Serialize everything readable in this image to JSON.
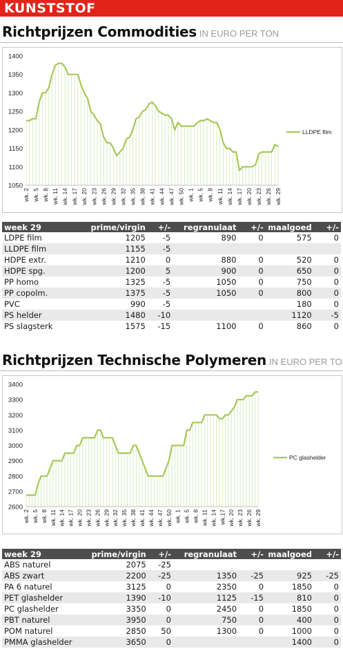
{
  "banner": {
    "label": "KUNSTSTOF"
  },
  "section1": {
    "title": "Richtprijzen Commodities",
    "subtitle": "IN EURO PER TON",
    "table": {
      "headers": [
        "week 29",
        "prime/virgin",
        "+/-",
        "regranulaat",
        "+/-",
        "maalgoed",
        "+/-"
      ],
      "rows": [
        [
          "LDPE film",
          "1205",
          "-5",
          "890",
          "0",
          "575",
          "0"
        ],
        [
          "LLDPE film",
          "1155",
          "-5",
          "",
          "",
          "",
          ""
        ],
        [
          "HDPE extr.",
          "1210",
          "0",
          "880",
          "0",
          "520",
          "0"
        ],
        [
          "HDPE spg.",
          "1200",
          "5",
          "900",
          "0",
          "650",
          "0"
        ],
        [
          "PP homo",
          "1325",
          "-5",
          "1050",
          "0",
          "750",
          "0"
        ],
        [
          "PP copolm.",
          "1375",
          "-5",
          "1050",
          "0",
          "800",
          "0"
        ],
        [
          "PVC",
          "990",
          "-5",
          "",
          "",
          "180",
          "0"
        ],
        [
          "PS helder",
          "1480",
          "-10",
          "",
          "",
          "1120",
          "-5"
        ],
        [
          "PS slagsterk",
          "1575",
          "-15",
          "1100",
          "0",
          "860",
          "0"
        ]
      ]
    }
  },
  "section2": {
    "title": "Richtprijzen Technische Polymeren",
    "subtitle": "IN EURO PER TON",
    "table": {
      "headers": [
        "week 29",
        "prime/virgin",
        "+/-",
        "regranulaat",
        "+/-",
        "maalgoed",
        "+/-"
      ],
      "rows": [
        [
          "ABS naturel",
          "2075",
          "-25",
          "",
          "",
          "",
          ""
        ],
        [
          "ABS zwart",
          "2200",
          "-25",
          "1350",
          "-25",
          "925",
          "-25"
        ],
        [
          "PA 6 naturel",
          "3125",
          "0",
          "2350",
          "0",
          "1850",
          "0"
        ],
        [
          "PET glashelder",
          "1390",
          "-10",
          "1125",
          "-15",
          "810",
          "0"
        ],
        [
          "PC glashelder",
          "3350",
          "0",
          "2450",
          "0",
          "1850",
          "0"
        ],
        [
          "PBT naturel",
          "3950",
          "0",
          "750",
          "0",
          "400",
          "0"
        ],
        [
          "POM naturel",
          "2850",
          "50",
          "1300",
          "0",
          "1000",
          "0"
        ],
        [
          "PMMA glashelder",
          "3650",
          "0",
          "",
          "",
          "1400",
          "0"
        ]
      ]
    }
  },
  "chart_data": [
    {
      "type": "line",
      "title": "",
      "xlabel": "",
      "ylabel": "",
      "ylim": [
        1050,
        1400
      ],
      "yticks": [
        1050,
        1100,
        1150,
        1200,
        1250,
        1300,
        1350,
        1400
      ],
      "xtick_labels": [
        "wk. 2",
        "wk. 5",
        "wk. 8",
        "wk. 11",
        "wk. 14",
        "wk. 17",
        "wk. 20",
        "wk. 23",
        "wk. 26",
        "wk. 29",
        "wk. 32",
        "wk. 35",
        "wk. 38",
        "wk. 41",
        "wk. 44",
        "wk. 47",
        "wk. 50",
        "wk. 1",
        "wk. 5",
        "wk. 8",
        "wk. 11",
        "wk. 14",
        "wk. 17",
        "wk. 20",
        "wk. 23",
        "wk. 26",
        "wk. 29"
      ],
      "legend_position": "right",
      "line_color": "#a6c85a",
      "series": [
        {
          "name": "LLDPE film",
          "values": [
            1225,
            1225,
            1230,
            1230,
            1275,
            1300,
            1300,
            1315,
            1350,
            1375,
            1380,
            1380,
            1370,
            1350,
            1350,
            1350,
            1350,
            1320,
            1300,
            1285,
            1250,
            1240,
            1225,
            1215,
            1180,
            1165,
            1165,
            1150,
            1130,
            1140,
            1150,
            1175,
            1180,
            1200,
            1230,
            1235,
            1250,
            1255,
            1270,
            1275,
            1265,
            1250,
            1245,
            1240,
            1240,
            1230,
            1200,
            1220,
            1210,
            1210,
            1210,
            1210,
            1210,
            1220,
            1225,
            1225,
            1230,
            1225,
            1220,
            1220,
            1200,
            1165,
            1150,
            1150,
            1140,
            1140,
            1090,
            1100,
            1100,
            1100,
            1100,
            1105,
            1135,
            1140,
            1140,
            1140,
            1140,
            1160,
            1155
          ]
        }
      ]
    },
    {
      "type": "line",
      "title": "",
      "xlabel": "",
      "ylabel": "",
      "ylim": [
        2600,
        3400
      ],
      "yticks": [
        2600,
        2700,
        2800,
        2900,
        3000,
        3100,
        3200,
        3300,
        3400
      ],
      "xtick_labels": [
        "wk. 2",
        "wk. 5",
        "wk. 8",
        "wk. 11",
        "wk. 14",
        "wk. 17",
        "wk. 20",
        "wk. 23",
        "wk. 26",
        "wk. 29",
        "wk. 32",
        "wk. 35",
        "wk. 38",
        "wk. 41",
        "wk. 44",
        "wk. 47",
        "wk. 50",
        "wk. 1",
        "wk. 5",
        "wk. 8",
        "wk. 11",
        "wk. 14",
        "wk.17",
        "wk. 20",
        "wk. 23",
        "wk. 26",
        "wk. 29"
      ],
      "legend_position": "right",
      "line_color": "#a6c85a",
      "series": [
        {
          "name": "PC glashelder",
          "values": [
            2675,
            2675,
            2675,
            2675,
            2750,
            2800,
            2800,
            2800,
            2850,
            2900,
            2900,
            2900,
            2900,
            2950,
            2950,
            2950,
            2950,
            3000,
            3000,
            3050,
            3050,
            3050,
            3050,
            3050,
            3100,
            3100,
            3050,
            3050,
            3050,
            3050,
            3000,
            2950,
            2950,
            2950,
            2950,
            2950,
            3000,
            3000,
            2950,
            2900,
            2850,
            2800,
            2800,
            2800,
            2800,
            2800,
            2800,
            2850,
            2900,
            3000,
            3000,
            3000,
            3000,
            3000,
            3100,
            3100,
            3150,
            3150,
            3150,
            3150,
            3200,
            3200,
            3200,
            3200,
            3200,
            3175,
            3175,
            3200,
            3200,
            3225,
            3250,
            3300,
            3300,
            3300,
            3325,
            3325,
            3325,
            3350,
            3350
          ]
        }
      ]
    }
  ]
}
